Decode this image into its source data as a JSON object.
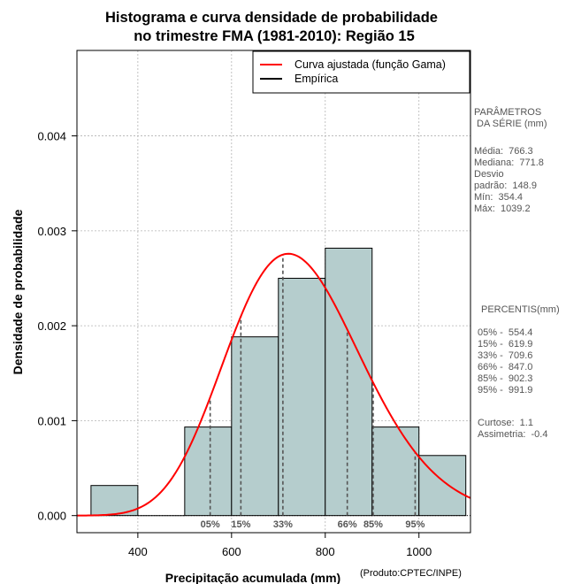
{
  "chart_data": {
    "type": "histogram",
    "title": "Histograma e curva densidade de probabilidade",
    "subtitle": "no trimestre FMA (1981-2010): Região 15",
    "xlabel": "Precipitação acumulada (mm)",
    "ylabel": "Densidade de probabilidade",
    "credit": "(Produto:CPTEC/INPE)",
    "xlim": [
      270,
      1110
    ],
    "ylim": [
      -0.00018,
      0.0049
    ],
    "x_ticks": [
      400,
      600,
      800,
      1000
    ],
    "x_tick_labels": [
      "400",
      "600",
      "800",
      "1000"
    ],
    "y_ticks": [
      0.0,
      0.001,
      0.002,
      0.003,
      0.004
    ],
    "y_tick_labels": [
      "0.000",
      "0.001",
      "0.002",
      "0.003",
      "0.004"
    ],
    "grid": true,
    "bins": [
      {
        "x0": 300,
        "x1": 400,
        "density": 0.000317
      },
      {
        "x0": 400,
        "x1": 500,
        "density": 0.0
      },
      {
        "x0": 500,
        "x1": 600,
        "density": 0.000933
      },
      {
        "x0": 600,
        "x1": 700,
        "density": 0.001883
      },
      {
        "x0": 700,
        "x1": 800,
        "density": 0.0025
      },
      {
        "x0": 800,
        "x1": 900,
        "density": 0.002817
      },
      {
        "x0": 900,
        "x1": 1000,
        "density": 0.000933
      },
      {
        "x0": 1000,
        "x1": 1100,
        "density": 0.000633
      }
    ],
    "fitted_curve": {
      "distribution": "gamma",
      "mean": 750,
      "sd": 147
    },
    "percentile_markers": [
      {
        "label": "05%",
        "value": 554.4
      },
      {
        "label": "15%",
        "value": 619.9
      },
      {
        "label": "33%",
        "value": 709.6
      },
      {
        "label": "66%",
        "value": 847.0
      },
      {
        "label": "85%",
        "value": 902.3
      },
      {
        "label": "95%",
        "value": 991.9
      }
    ],
    "legend": {
      "position": "top-right",
      "entries": [
        {
          "label": "Curva ajustada (função Gama)",
          "color": "#ff0000"
        },
        {
          "label": "Empírica",
          "color": "#000000"
        }
      ]
    },
    "colors": {
      "bar_fill": "#b5cdcd",
      "curve": "#ff0000",
      "grid": "#b3b3b3",
      "marker": "#555555"
    }
  },
  "side_panel": {
    "params_heading": "PARÂMETROS\n DA SÉRIE (mm)",
    "stats": "Média:  766.3\nMediana:  771.8\nDesvio\npadrão:  148.9\nMín:  354.4\nMáx:  1039.2",
    "percentis_heading": "PERCENTIS(mm)",
    "percentis": "05% -  554.4\n15% -  619.9\n33% -  709.6\n66% -  847.0\n85% -  902.3\n95% -  991.9",
    "shape": "Curtose:  1.1\nAssimetria:  -0.4"
  }
}
